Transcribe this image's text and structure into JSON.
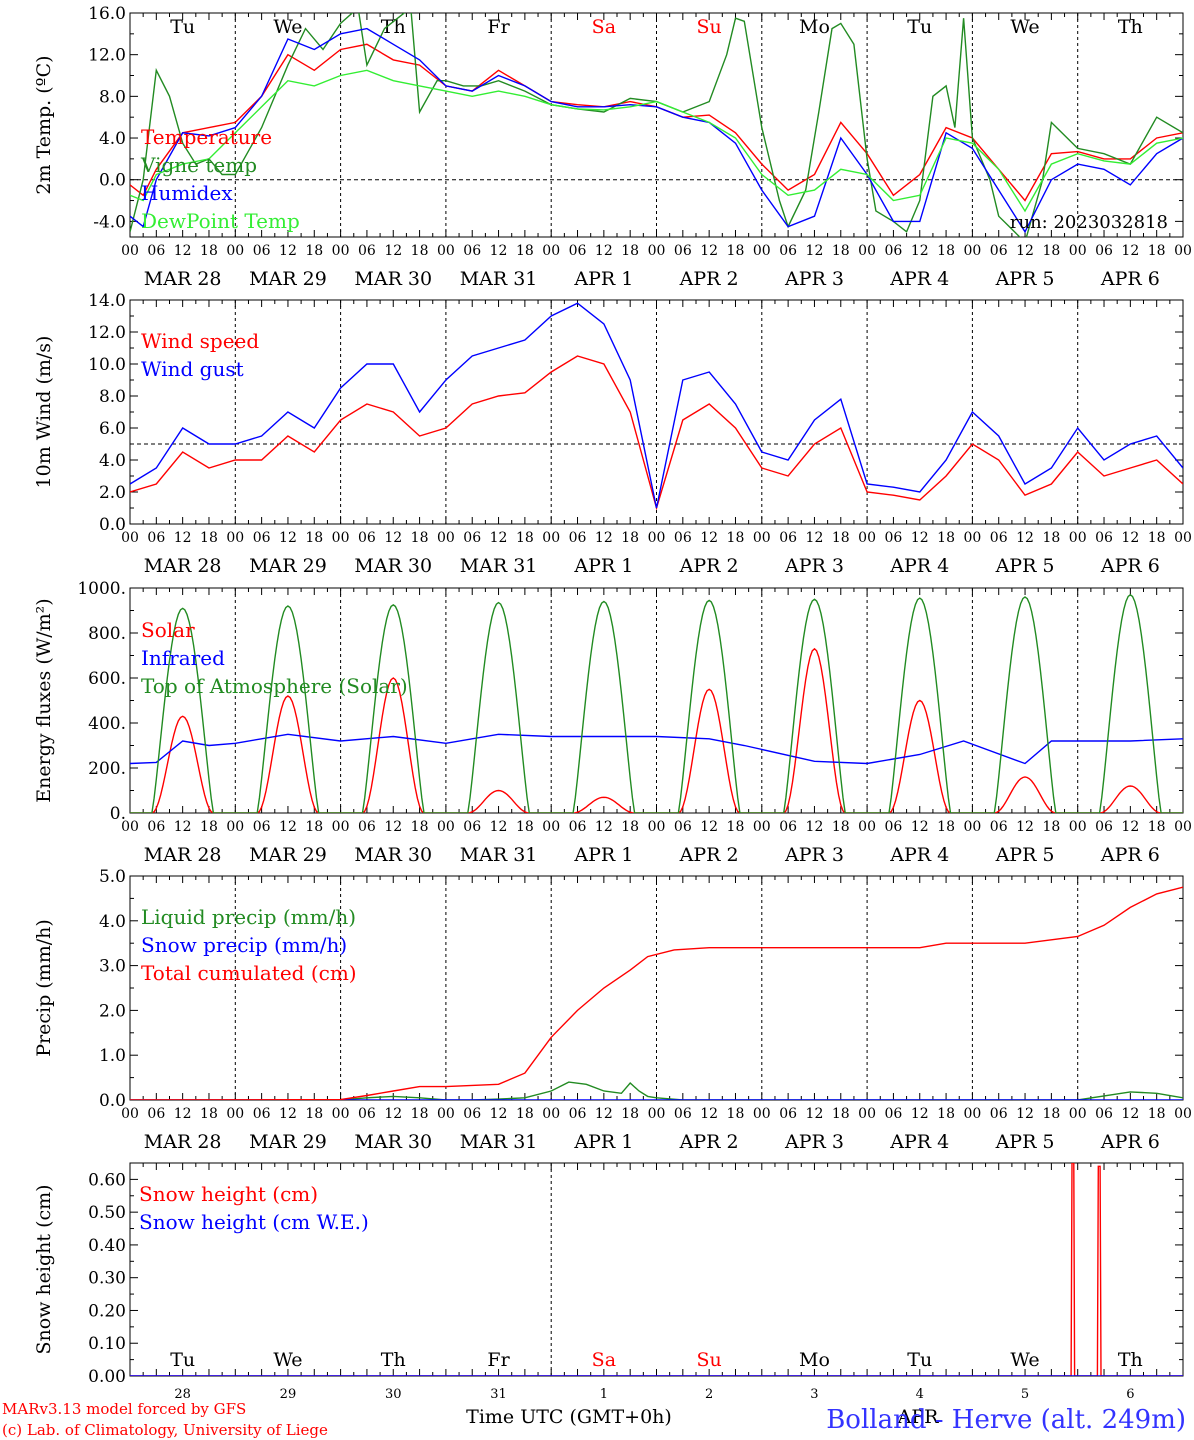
{
  "run_label": "run: 2023032818",
  "footer": {
    "credit_line1": "MARv3.13 model forced by GFS",
    "credit_line2": "(c) Lab. of Climatology, University of Liege",
    "xlabel": "Time UTC (GMT+0h)",
    "xlabel_month": "APR",
    "station": "Bolland - Herve (alt. 249m)"
  },
  "weekday_labels": [
    {
      "label": "Tu",
      "color": "#000000"
    },
    {
      "label": "We",
      "color": "#000000"
    },
    {
      "label": "Th",
      "color": "#000000"
    },
    {
      "label": "Fr",
      "color": "#000000"
    },
    {
      "label": "Sa",
      "color": "#ff0000"
    },
    {
      "label": "Su",
      "color": "#ff0000"
    },
    {
      "label": "Mo",
      "color": "#000000"
    },
    {
      "label": "Tu",
      "color": "#000000"
    },
    {
      "label": "We",
      "color": "#000000"
    },
    {
      "label": "Th",
      "color": "#000000"
    }
  ],
  "date_labels": [
    "MAR 28",
    "MAR 29",
    "MAR 30",
    "MAR 31",
    "APR  1",
    "APR  2",
    "APR  3",
    "APR  4",
    "APR  5",
    "APR  6"
  ],
  "hour_labels": [
    "00",
    "06",
    "12",
    "18"
  ],
  "day_numbers": [
    "28",
    "29",
    "30",
    "31",
    "1",
    "2",
    "3",
    "4",
    "5",
    "6"
  ],
  "chart_data": [
    {
      "type": "line",
      "id": "temp",
      "ylabel": "2m Temp. (ºC)",
      "ylim": [
        -5.5,
        16.0
      ],
      "yticks": [
        -4.0,
        0.0,
        4.0,
        8.0,
        12.0,
        16.0
      ],
      "ytick_labels": [
        "-4.0",
        "0.0",
        "4.0",
        "8.0",
        "12.0",
        "16.0"
      ],
      "xlim_hours": [
        0,
        240
      ],
      "dashed_h": 0,
      "series": [
        {
          "name": "Temperature",
          "color": "#ff0000",
          "x": [
            0,
            3,
            6,
            12,
            18,
            24,
            30,
            36,
            42,
            48,
            54,
            60,
            66,
            72,
            78,
            84,
            90,
            96,
            102,
            108,
            114,
            120,
            126,
            132,
            138,
            144,
            150,
            156,
            162,
            168,
            174,
            180,
            186,
            192,
            198,
            204,
            210,
            216,
            222,
            228,
            234,
            240
          ],
          "y": [
            -0.5,
            -1.5,
            1.0,
            4.5,
            5.0,
            5.5,
            8.0,
            12.0,
            10.5,
            12.5,
            13.0,
            11.5,
            11.0,
            9.0,
            8.5,
            10.5,
            9.0,
            7.5,
            7.2,
            7.0,
            7.5,
            7.0,
            6.0,
            6.2,
            4.5,
            1.5,
            -1.0,
            0.5,
            5.5,
            2.5,
            -1.5,
            0.5,
            5.0,
            4.0,
            1.0,
            -2.0,
            2.5,
            2.7,
            2.0,
            2.0,
            4.0,
            4.5
          ]
        },
        {
          "name": "Vigne temp",
          "color": "#228b22",
          "x": [
            0,
            3,
            6,
            9,
            12,
            15,
            18,
            21,
            24,
            30,
            36,
            40,
            44,
            48,
            52,
            54,
            58,
            64,
            66,
            70,
            72,
            76,
            80,
            84,
            90,
            96,
            102,
            108,
            114,
            120,
            126,
            132,
            136,
            138,
            140,
            144,
            148,
            150,
            154,
            157,
            160,
            162,
            165,
            168,
            170,
            174,
            177,
            180,
            183,
            186,
            188,
            190,
            192,
            196,
            198,
            204,
            208,
            210,
            216,
            222,
            228,
            234,
            240
          ],
          "y": [
            -5.0,
            0.0,
            10.5,
            8.0,
            3.5,
            1.5,
            2.0,
            0.5,
            0.5,
            5.0,
            11.0,
            14.5,
            12.5,
            15.0,
            16.5,
            11.0,
            14.5,
            16.5,
            6.5,
            9.5,
            9.5,
            9.0,
            9.0,
            9.5,
            8.5,
            7.2,
            6.8,
            6.5,
            7.8,
            7.5,
            6.5,
            7.5,
            12.0,
            15.5,
            15.2,
            5.0,
            -2.0,
            -4.5,
            -1.0,
            6.5,
            14.5,
            15.0,
            13.0,
            2.0,
            -3.0,
            -4.0,
            -5.0,
            -2.0,
            8.0,
            9.0,
            5.0,
            15.5,
            4.0,
            0.0,
            -3.5,
            -6.0,
            0.0,
            5.5,
            3.0,
            2.5,
            1.5,
            6.0,
            4.5
          ]
        },
        {
          "name": "Humidex",
          "color": "#0000ff",
          "x": [
            0,
            3,
            6,
            12,
            18,
            24,
            30,
            36,
            42,
            48,
            54,
            60,
            66,
            72,
            78,
            84,
            90,
            96,
            102,
            108,
            114,
            120,
            126,
            132,
            138,
            144,
            150,
            156,
            162,
            168,
            174,
            180,
            186,
            192,
            198,
            204,
            210,
            216,
            222,
            228,
            234,
            240
          ],
          "y": [
            -3.5,
            -4.5,
            0.0,
            4.5,
            4.2,
            5.0,
            8.0,
            13.5,
            12.5,
            14.0,
            14.5,
            13.0,
            11.5,
            9.0,
            8.5,
            10.0,
            9.0,
            7.5,
            7.0,
            7.0,
            7.2,
            7.0,
            6.0,
            5.5,
            3.5,
            -1.0,
            -4.5,
            -3.5,
            4.0,
            0.5,
            -4.0,
            -4.0,
            4.5,
            3.0,
            -1.0,
            -5.0,
            0.0,
            1.5,
            1.0,
            -0.5,
            2.5,
            4.0
          ]
        },
        {
          "name": "DewPoint Temp",
          "color": "#33ee33",
          "x": [
            0,
            3,
            6,
            12,
            18,
            24,
            30,
            36,
            42,
            48,
            54,
            60,
            66,
            72,
            78,
            84,
            90,
            96,
            102,
            108,
            114,
            120,
            126,
            132,
            138,
            144,
            150,
            156,
            162,
            168,
            174,
            180,
            186,
            192,
            198,
            204,
            210,
            216,
            222,
            228,
            234,
            240
          ],
          "y": [
            -1.5,
            -2.0,
            0.5,
            1.5,
            2.0,
            4.5,
            7.0,
            9.5,
            9.0,
            10.0,
            10.5,
            9.5,
            9.0,
            8.5,
            8.0,
            8.5,
            8.0,
            7.2,
            6.8,
            6.7,
            7.0,
            7.5,
            6.5,
            5.5,
            4.0,
            0.5,
            -1.5,
            -1.0,
            1.0,
            0.5,
            -2.0,
            -1.5,
            4.0,
            3.5,
            1.0,
            -3.0,
            1.5,
            2.5,
            1.8,
            1.5,
            3.5,
            4.0
          ]
        }
      ]
    },
    {
      "type": "line",
      "id": "wind",
      "ylabel": "10m Wind (m/s)",
      "ylim": [
        0,
        14
      ],
      "yticks": [
        0,
        2,
        4,
        6,
        8,
        10,
        12,
        14
      ],
      "ytick_labels": [
        "0.0",
        "2.0",
        "4.0",
        "6.0",
        "8.0",
        "10.0",
        "12.0",
        "14.0"
      ],
      "xlim_hours": [
        0,
        240
      ],
      "dashed_h": 5,
      "series": [
        {
          "name": "Wind speed",
          "color": "#ff0000",
          "x": [
            0,
            6,
            12,
            18,
            24,
            30,
            36,
            42,
            48,
            54,
            60,
            66,
            72,
            78,
            84,
            90,
            96,
            102,
            108,
            114,
            120,
            126,
            132,
            138,
            144,
            150,
            156,
            162,
            168,
            174,
            180,
            186,
            192,
            198,
            204,
            210,
            216,
            222,
            228,
            234,
            240
          ],
          "y": [
            2.0,
            2.5,
            4.5,
            3.5,
            4.0,
            4.0,
            5.5,
            4.5,
            6.5,
            7.5,
            7.0,
            5.5,
            6.0,
            7.5,
            8.0,
            8.2,
            9.5,
            10.5,
            10.0,
            7.0,
            1.0,
            6.5,
            7.5,
            6.0,
            3.5,
            3.0,
            5.0,
            6.0,
            2.0,
            1.8,
            1.5,
            3.0,
            5.0,
            4.0,
            1.8,
            2.5,
            4.5,
            3.0,
            3.5,
            4.0,
            2.5
          ]
        },
        {
          "name": "Wind gust",
          "color": "#0000ff",
          "x": [
            0,
            6,
            12,
            18,
            24,
            30,
            36,
            42,
            48,
            54,
            60,
            66,
            72,
            78,
            84,
            90,
            96,
            102,
            108,
            114,
            120,
            126,
            132,
            138,
            144,
            150,
            156,
            162,
            168,
            174,
            180,
            186,
            192,
            198,
            204,
            210,
            216,
            222,
            228,
            234,
            240
          ],
          "y": [
            2.5,
            3.5,
            6.0,
            5.0,
            5.0,
            5.5,
            7.0,
            6.0,
            8.5,
            10.0,
            10.0,
            7.0,
            9.0,
            10.5,
            11.0,
            11.5,
            13.0,
            13.8,
            12.5,
            9.0,
            1.0,
            9.0,
            9.5,
            7.5,
            4.5,
            4.0,
            6.5,
            7.8,
            2.5,
            2.3,
            2.0,
            4.0,
            7.0,
            5.5,
            2.5,
            3.5,
            6.0,
            4.0,
            5.0,
            5.5,
            3.5
          ]
        }
      ]
    },
    {
      "type": "line",
      "id": "energy",
      "ylabel": "Energy fluxes (W/m²)",
      "ylim": [
        0,
        1000
      ],
      "yticks": [
        0,
        200,
        400,
        600,
        800,
        1000
      ],
      "ytick_labels": [
        "0.",
        "200.",
        "400.",
        "600.",
        "800.",
        "1000."
      ],
      "xlim_hours": [
        0,
        240
      ],
      "series": [
        {
          "name": "Solar",
          "color": "#ff0000",
          "peak_hour": [
            12,
            36,
            60,
            84,
            108,
            132,
            156,
            180,
            204,
            228
          ],
          "peak": [
            430,
            520,
            600,
            100,
            70,
            550,
            730,
            500,
            160,
            120
          ]
        },
        {
          "name": "Infrared",
          "color": "#0000ff",
          "x": [
            0,
            6,
            12,
            18,
            24,
            30,
            36,
            48,
            60,
            72,
            84,
            96,
            108,
            120,
            132,
            140,
            156,
            168,
            180,
            190,
            204,
            210,
            216,
            228,
            240
          ],
          "y": [
            220,
            225,
            320,
            300,
            310,
            330,
            350,
            320,
            340,
            310,
            350,
            340,
            340,
            340,
            330,
            300,
            230,
            220,
            260,
            320,
            220,
            320,
            320,
            320,
            330
          ]
        },
        {
          "name": "Top of Atmosphere (Solar)",
          "color": "#228b22",
          "peak_hour": [
            12,
            36,
            60,
            84,
            108,
            132,
            156,
            180,
            204,
            228
          ],
          "peak": [
            910,
            920,
            925,
            935,
            940,
            945,
            950,
            955,
            960,
            970
          ]
        }
      ]
    },
    {
      "type": "line",
      "id": "precip",
      "ylabel": "Precip (mm/h)",
      "ylim": [
        0,
        5
      ],
      "yticks": [
        0,
        1,
        2,
        3,
        4,
        5
      ],
      "ytick_labels": [
        "0.0",
        "1.0",
        "2.0",
        "3.0",
        "4.0",
        "5.0"
      ],
      "xlim_hours": [
        0,
        240
      ],
      "series": [
        {
          "name": "Liquid precip (mm/h)",
          "color": "#228b22",
          "x": [
            0,
            48,
            54,
            60,
            66,
            72,
            78,
            84,
            90,
            96,
            100,
            104,
            108,
            112,
            114,
            116,
            118,
            120,
            126,
            144,
            192,
            216,
            228,
            234,
            240
          ],
          "y": [
            0,
            0,
            0.05,
            0.08,
            0.05,
            0,
            0,
            0.02,
            0.05,
            0.2,
            0.4,
            0.35,
            0.2,
            0.15,
            0.38,
            0.2,
            0.08,
            0.05,
            0,
            0,
            0,
            0,
            0.18,
            0.15,
            0.05
          ]
        },
        {
          "name": "Snow precip (mm/h)",
          "color": "#0000ff",
          "x": [
            0,
            240
          ],
          "y": [
            0,
            0
          ]
        },
        {
          "name": "Total cumulated (cm)",
          "color": "#ff0000",
          "x": [
            0,
            48,
            54,
            60,
            66,
            72,
            84,
            90,
            96,
            102,
            108,
            114,
            118,
            124,
            132,
            144,
            168,
            180,
            186,
            204,
            216,
            222,
            228,
            234,
            240
          ],
          "y": [
            0,
            0.01,
            0.1,
            0.2,
            0.3,
            0.3,
            0.35,
            0.6,
            1.4,
            2.0,
            2.5,
            2.9,
            3.2,
            3.35,
            3.4,
            3.4,
            3.4,
            3.4,
            3.5,
            3.5,
            3.65,
            3.9,
            4.3,
            4.6,
            4.75
          ]
        }
      ]
    },
    {
      "type": "line",
      "id": "snow",
      "ylabel": "Snow height (cm)",
      "ylim": [
        0,
        0.65
      ],
      "yticks": [
        0,
        0.1,
        0.2,
        0.3,
        0.4,
        0.5,
        0.6
      ],
      "ytick_labels": [
        "0.00",
        "0.10",
        "0.20",
        "0.30",
        "0.40",
        "0.50",
        "0.60"
      ],
      "xlim_hours": [
        0,
        240
      ],
      "series": [
        {
          "name": "Snow height (cm)",
          "color": "#ff0000",
          "x": [
            0,
            214.5,
            214.7,
            215.1,
            215.3,
            220.5,
            220.7,
            221.1,
            221.3,
            240
          ],
          "y": [
            0,
            0,
            0.65,
            0.65,
            0,
            0,
            0.64,
            0.64,
            0,
            0
          ]
        },
        {
          "name": "Snow height (cm W.E.)",
          "color": "#0000ff",
          "x": [
            0,
            240
          ],
          "y": [
            0,
            0
          ]
        }
      ]
    }
  ]
}
